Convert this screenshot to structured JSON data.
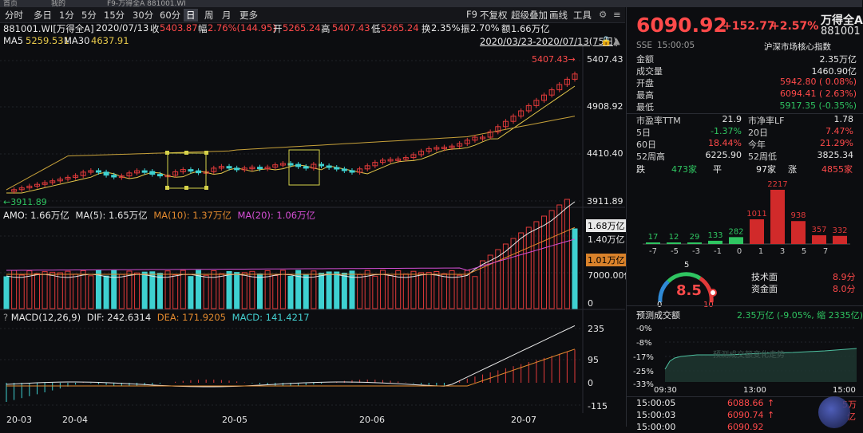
{
  "top_tabs": [
    "首页",
    "我的",
    "F9-万得全A 881001.WI"
  ],
  "toolbar": {
    "periods": [
      "分时",
      "多日",
      "1分",
      "5分",
      "15分",
      "30分",
      "60分",
      "日",
      "周",
      "月",
      "更多"
    ],
    "active_period": "日",
    "right_items": [
      "F9",
      "不复权",
      "超级叠加",
      "画线",
      "工具"
    ]
  },
  "info": {
    "code": "881001.WI[万得全A]",
    "date": "2020/07/13",
    "close_label": "收",
    "close": "5403.87",
    "amp_label": "幅",
    "amp": "2.76%(144.95)",
    "open_label": "开",
    "open": "5265.24",
    "high": "5407.43",
    "low_label": "低",
    "low": "5265.24",
    "turnover_label": "换",
    "turnover": "2.35%",
    "swing_label": "振",
    "swing": "2.70%",
    "amount_label": "额",
    "amount": "1.66万亿"
  },
  "ma": {
    "ma5_label": "MA5",
    "ma5": "5259.531",
    "ma30_label": "MA30",
    "ma30": "4637.91",
    "range": "2020/03/23-2020/07/13(75日)"
  },
  "price_axis": [
    "5407.43",
    "4908.92",
    "4410.40",
    "3911.89"
  ],
  "price_marks": {
    "high": "5407.43",
    "low": "3911.89"
  },
  "amo": {
    "title": "AMO: 1.66万亿",
    "ma5": "MA(5): 1.65万亿",
    "ma10": "MA(10): 1.37万亿",
    "ma20": "MA(20): 1.06万亿",
    "axis": [
      "1.68万亿",
      "1.40万亿",
      "1.01万亿",
      "7000.00亿",
      "0"
    ]
  },
  "macd": {
    "title": "MACD(12,26,9)",
    "dif": "DIF: 242.6314",
    "dea": "DEA: 171.9205",
    "macd": "MACD: 141.4217",
    "axis": [
      "235",
      "95",
      "0",
      "-115"
    ]
  },
  "x_labels": [
    "20-03",
    "20-04",
    "20-05",
    "20-06",
    "20-07"
  ],
  "chart_data": {
    "type": "candlestick",
    "x_range": [
      "2020/03/23",
      "2020/07/13"
    ],
    "ylim": [
      3911.89,
      5407.43
    ],
    "last": {
      "date": "2020/07/13",
      "open": 5265.24,
      "high": 5407.43,
      "low": 5265.24,
      "close": 5403.87
    },
    "ma5_last": 5259.531,
    "ma30_last": 4637.91,
    "volume_last": "1.66万亿",
    "macd_last": {
      "dif": 242.6314,
      "dea": 171.9205,
      "macd": 141.4217
    }
  },
  "quote": {
    "price": "6090.92",
    "change": "+152.77",
    "pct": "+2.57%",
    "name": "万得全A",
    "code": "881001",
    "exchange": "SSE",
    "time": "15:00:05",
    "category": "沪深市场核心指数",
    "rows": [
      {
        "k": "金额",
        "v": "2.35万亿",
        "c": "white"
      },
      {
        "k": "成交量",
        "v": "1460.90亿",
        "c": "white"
      },
      {
        "k": "开盘",
        "v": "5942.80 ( 0.08%)",
        "c": "red"
      },
      {
        "k": "最高",
        "v": "6094.41 ( 2.63%)",
        "c": "red"
      },
      {
        "k": "最低",
        "v": "5917.35 (-0.35%)",
        "c": "green"
      }
    ],
    "pairs": [
      {
        "k1": "市盈率TTM",
        "v1": "21.9",
        "c1": "white",
        "k2": "市净率LF",
        "v2": "1.78",
        "c2": "white"
      },
      {
        "k1": "5日",
        "v1": "-1.37%",
        "c1": "green",
        "k2": "20日",
        "v2": "7.47%",
        "c2": "red"
      },
      {
        "k1": "60日",
        "v1": "18.44%",
        "c1": "red",
        "k2": "今年",
        "v2": "21.29%",
        "c2": "red"
      },
      {
        "k1": "52周高",
        "v1": "6225.90",
        "c1": "white",
        "k2": "52周低",
        "v2": "3825.34",
        "c2": "white"
      }
    ],
    "breadth": {
      "down_label": "跌",
      "down": "473家",
      "flat_label": "平",
      "flat": "97家",
      "up_label": "涨",
      "up": "4855家"
    }
  },
  "distribution": {
    "values": [
      17,
      12,
      29,
      133,
      282,
      1011,
      2217,
      938,
      357,
      332
    ],
    "axis": [
      "-7",
      "-5",
      "-3",
      "-1",
      "0",
      "1",
      "3",
      "5",
      "7"
    ]
  },
  "gauge": {
    "score": "8.5",
    "min": "0",
    "mid": "5",
    "max": "10",
    "tech_label": "技术面",
    "tech": "8.9分",
    "fund_label": "资金面",
    "fund": "8.0分"
  },
  "forecast": {
    "title": "预测成交额",
    "value": "2.35万亿 (-9.05%, 缩 2335亿)",
    "y_axis": [
      "-0%",
      "-8%",
      "-17%",
      "-25%",
      "-33%"
    ],
    "x_axis": [
      "09:30",
      "13:00",
      "15:00"
    ],
    "watermark": "预测成交额变化走势"
  },
  "ticks": [
    {
      "time": "15:00:05",
      "price": "6088.66",
      "vol": "5万"
    },
    {
      "time": "15:00:03",
      "price": "6090.74",
      "vol": "亿"
    },
    {
      "time": "15:00:00",
      "price": "6090.92",
      "vol": ""
    }
  ]
}
